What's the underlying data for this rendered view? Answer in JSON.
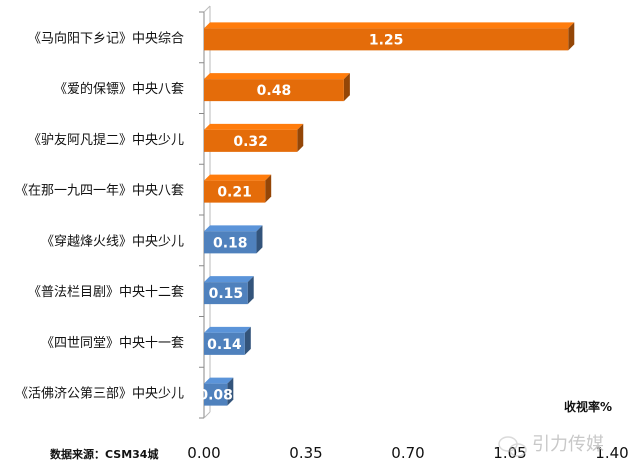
{
  "chart_data": {
    "type": "bar",
    "orientation": "horizontal",
    "categories": [
      "《马向阳下乡记》中央综合",
      "《爱的保镖》中央八套",
      "《驴友阿凡提二》中央少儿",
      "《在那一九四一年》中央八套",
      "《穿越烽火线》中央少儿",
      "《普法栏目剧》中央十二套",
      "《四世同堂》中央十一套",
      "《活佛济公第三部》中央少儿"
    ],
    "values": [
      1.25,
      0.48,
      0.32,
      0.21,
      0.18,
      0.15,
      0.14,
      0.08
    ],
    "value_labels": [
      "1.25",
      "0.48",
      "0.32",
      "0.21",
      "0.18",
      "0.15",
      "0.14",
      "0.08"
    ],
    "bar_colors": [
      "#e46c0a",
      "#e46c0a",
      "#e46c0a",
      "#e46c0a",
      "#4f81bd",
      "#4f81bd",
      "#4f81bd",
      "#4f81bd"
    ],
    "xlim": [
      0,
      1.4
    ],
    "x_ticks": [
      "0.00",
      "0.35",
      "0.70",
      "1.05",
      "1.40"
    ],
    "xlabel": "收视率%",
    "grid": false,
    "legend": "none"
  },
  "footer": {
    "source": "数据来源：CSM34城"
  },
  "watermark": {
    "text": "引力传媒",
    "icon": "wechat-icon"
  }
}
